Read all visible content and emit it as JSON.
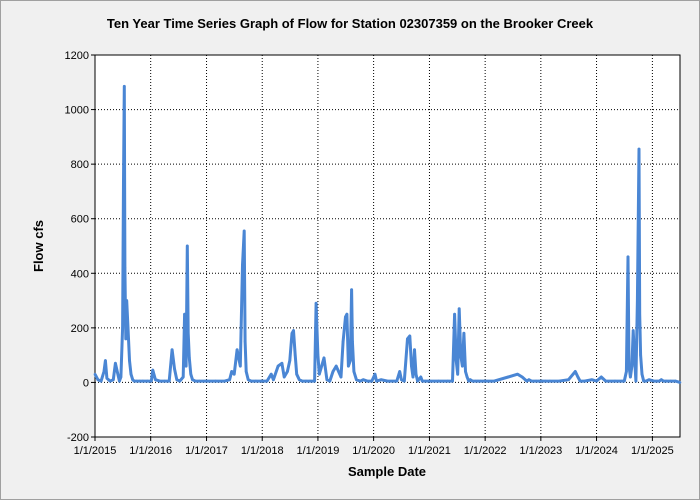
{
  "chart_data": {
    "type": "line",
    "title": "Ten Year Time Series Graph of Flow for Station 02307359 on the Brooker Creek",
    "xlabel": "Sample Date",
    "ylabel": "Flow cfs",
    "xlim": [
      "2015-01-01",
      "2025-07-01"
    ],
    "ylim": [
      -200,
      1200
    ],
    "yticks": [
      -200,
      0,
      200,
      400,
      600,
      800,
      1000,
      1200
    ],
    "xticks": [
      "1/1/2015",
      "1/1/2016",
      "1/1/2017",
      "1/1/2018",
      "1/1/2019",
      "1/1/2020",
      "1/1/2021",
      "1/1/2022",
      "1/1/2023",
      "1/1/2024",
      "1/1/2025"
    ],
    "grid": true,
    "legend": "none",
    "line_color": "#4a86d4",
    "series": [
      {
        "x": [
          "2015-01-01",
          "2015-01-20",
          "2015-02-10",
          "2015-03-01",
          "2015-03-10",
          "2015-03-20",
          "2015-04-10",
          "2015-05-01",
          "2015-05-15",
          "2015-06-10",
          "2015-06-20",
          "2015-07-01",
          "2015-07-07",
          "2015-07-12",
          "2015-07-16",
          "2015-07-22",
          "2015-07-28",
          "2015-08-05",
          "2015-08-15",
          "2015-08-25",
          "2015-09-05",
          "2015-09-15",
          "2015-10-01",
          "2015-10-20",
          "2015-11-10",
          "2015-12-10",
          "2016-01-05",
          "2016-01-15",
          "2016-02-01",
          "2016-03-01",
          "2016-04-01",
          "2016-05-01",
          "2016-05-20",
          "2016-06-05",
          "2016-06-20",
          "2016-07-10",
          "2016-08-01",
          "2016-08-10",
          "2016-08-20",
          "2016-08-28",
          "2016-09-03",
          "2016-09-10",
          "2016-09-20",
          "2016-10-01",
          "2016-10-20",
          "2016-11-15",
          "2017-01-01",
          "2017-03-01",
          "2017-05-01",
          "2017-06-01",
          "2017-06-15",
          "2017-07-01",
          "2017-07-20",
          "2017-08-10",
          "2017-08-25",
          "2017-09-05",
          "2017-09-11",
          "2017-09-18",
          "2017-10-01",
          "2017-10-20",
          "2017-11-20",
          "2018-01-01",
          "2018-02-01",
          "2018-03-01",
          "2018-03-15",
          "2018-04-15",
          "2018-05-10",
          "2018-05-25",
          "2018-06-15",
          "2018-07-01",
          "2018-07-15",
          "2018-07-25",
          "2018-08-05",
          "2018-08-15",
          "2018-09-01",
          "2018-09-20",
          "2018-10-15",
          "2018-11-10",
          "2018-12-10",
          "2018-12-20",
          "2019-01-01",
          "2019-01-10",
          "2019-02-10",
          "2019-03-01",
          "2019-03-20",
          "2019-04-10",
          "2019-05-01",
          "2019-06-01",
          "2019-06-15",
          "2019-07-01",
          "2019-07-10",
          "2019-07-20",
          "2019-08-01",
          "2019-08-10",
          "2019-08-15",
          "2019-08-25",
          "2019-09-10",
          "2019-10-05",
          "2019-10-25",
          "2019-11-20",
          "2019-12-20",
          "2020-01-10",
          "2020-01-20",
          "2020-02-20",
          "2020-04-01",
          "2020-06-01",
          "2020-06-20",
          "2020-07-01",
          "2020-07-20",
          "2020-08-10",
          "2020-08-25",
          "2020-09-05",
          "2020-09-15",
          "2020-09-25",
          "2020-10-05",
          "2020-10-15",
          "2020-11-05",
          "2020-11-15",
          "2020-12-05",
          "2021-01-05",
          "2021-03-01",
          "2021-05-01",
          "2021-06-01",
          "2021-06-15",
          "2021-06-25",
          "2021-07-05",
          "2021-07-15",
          "2021-07-25",
          "2021-08-05",
          "2021-08-15",
          "2021-08-25",
          "2021-09-05",
          "2021-09-15",
          "2021-09-25",
          "2021-10-10",
          "2021-11-01",
          "2021-11-15",
          "2021-12-01",
          "2022-01-01",
          "2022-03-01",
          "2022-06-01",
          "2022-08-01",
          "2022-09-01",
          "2022-10-01",
          "2022-10-15",
          "2022-11-01",
          "2022-12-01",
          "2022-12-20",
          "2023-01-10",
          "2023-02-01",
          "2023-03-01",
          "2023-05-01",
          "2023-07-01",
          "2023-08-15",
          "2023-09-01",
          "2023-09-15",
          "2023-10-15",
          "2023-12-01",
          "2024-01-01",
          "2024-02-01",
          "2024-03-01",
          "2024-05-01",
          "2024-06-15",
          "2024-07-01",
          "2024-07-15",
          "2024-07-25",
          "2024-08-01",
          "2024-08-10",
          "2024-08-20",
          "2024-08-28",
          "2024-09-05",
          "2024-09-15",
          "2024-09-25",
          "2024-10-05",
          "2024-10-10",
          "2024-10-16",
          "2024-10-25",
          "2024-11-05",
          "2024-11-20",
          "2024-12-10",
          "2025-01-10",
          "2025-02-01",
          "2025-02-15",
          "2025-03-01",
          "2025-03-15",
          "2025-04-01",
          "2025-05-01",
          "2025-06-01",
          "2025-07-01"
        ],
        "y": [
          30,
          10,
          5,
          40,
          80,
          15,
          5,
          10,
          70,
          5,
          20,
          200,
          740,
          1085,
          420,
          160,
          300,
          200,
          80,
          30,
          10,
          5,
          5,
          5,
          5,
          5,
          5,
          45,
          10,
          5,
          5,
          5,
          120,
          50,
          10,
          5,
          20,
          250,
          60,
          500,
          180,
          90,
          30,
          10,
          5,
          5,
          5,
          5,
          5,
          10,
          40,
          30,
          120,
          60,
          430,
          555,
          150,
          40,
          10,
          5,
          5,
          5,
          5,
          30,
          10,
          60,
          70,
          20,
          40,
          80,
          180,
          190,
          100,
          30,
          10,
          5,
          5,
          5,
          5,
          290,
          100,
          30,
          90,
          10,
          5,
          40,
          60,
          20,
          150,
          240,
          250,
          60,
          80,
          340,
          150,
          40,
          10,
          5,
          10,
          5,
          5,
          30,
          5,
          10,
          5,
          5,
          40,
          10,
          5,
          160,
          170,
          60,
          20,
          120,
          30,
          5,
          20,
          5,
          5,
          5,
          5,
          5,
          5,
          250,
          80,
          30,
          270,
          100,
          60,
          180,
          40,
          20,
          5,
          10,
          5,
          5,
          5,
          5,
          5,
          5,
          20,
          30,
          20,
          5,
          10,
          5,
          5,
          5,
          5,
          5,
          5,
          5,
          10,
          40,
          20,
          5,
          5,
          10,
          5,
          20,
          5,
          5,
          5,
          5,
          40,
          460,
          60,
          20,
          60,
          190,
          100,
          5,
          300,
          855,
          250,
          100,
          30,
          5,
          5,
          10,
          5,
          5,
          5,
          10,
          5,
          5,
          5,
          5,
          0
        ]
      }
    ]
  }
}
